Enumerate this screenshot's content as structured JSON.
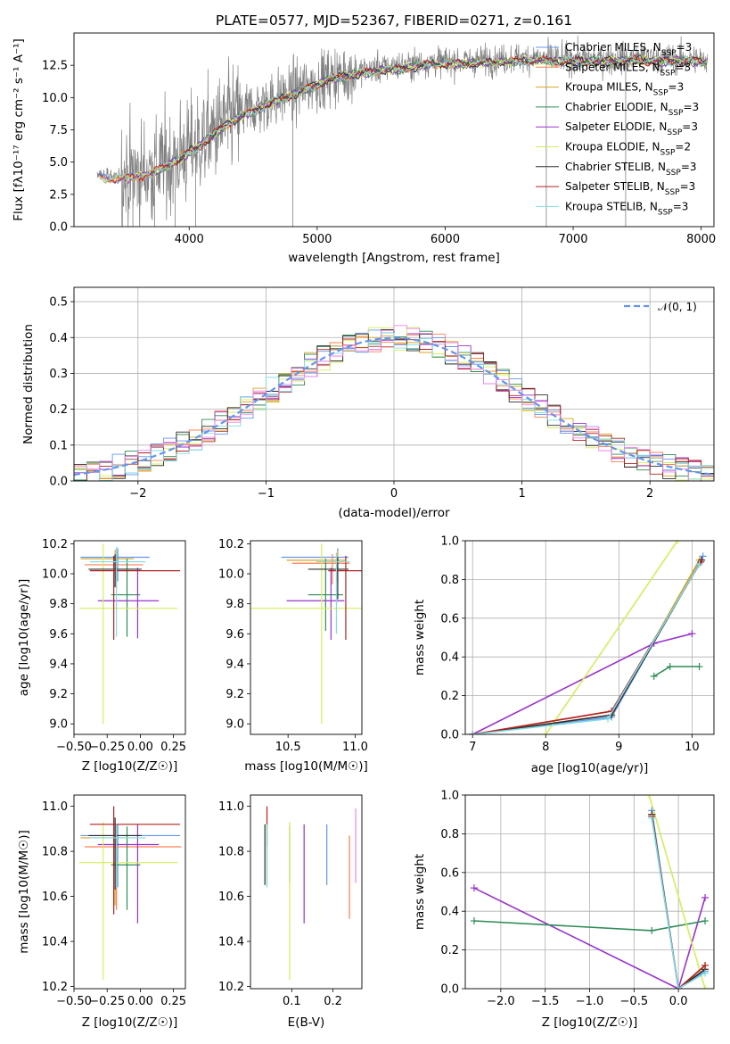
{
  "chart_data": [
    {
      "id": "spectrum",
      "type": "line",
      "title": "PLATE=0577, MJD=52367, FIBERID=0271, z=0.161",
      "xlabel": "wavelength [Angstrom, rest frame]",
      "ylabel": "Flux [fλ10⁻¹⁷ erg cm⁻² s⁻¹ A⁻¹]",
      "xlim": [
        3100,
        8100
      ],
      "ylim": [
        0,
        15
      ],
      "xticks": [
        4000,
        5000,
        6000,
        7000,
        8000
      ],
      "yticks": [
        0.0,
        2.5,
        5.0,
        7.5,
        10.0,
        12.5
      ],
      "grid": false,
      "legend_position": "upper-right",
      "data_color": "#808080",
      "data_envelope": {
        "x": [
          3300,
          3500,
          3700,
          3900,
          4100,
          4300,
          4500,
          4700,
          4900,
          5100,
          5300,
          5500,
          5700,
          5900,
          6100,
          6300,
          6500,
          6700,
          6900,
          7100,
          7300,
          7500,
          7700,
          7900,
          8050
        ],
        "y": [
          4.0,
          3.9,
          4.3,
          5.3,
          6.6,
          8.2,
          9.2,
          10.0,
          10.8,
          11.6,
          12.0,
          12.3,
          12.5,
          12.8,
          12.8,
          12.9,
          13.0,
          13.1,
          13.0,
          13.0,
          13.0,
          13.1,
          13.0,
          13.0,
          12.9
        ]
      },
      "series": [
        {
          "name": "Chabrier MILES, N_SSP=3",
          "color": "#6495ed"
        },
        {
          "name": "Salpeter MILES, N_SSP=3",
          "color": "#ff7f50"
        },
        {
          "name": "Kroupa MILES, N_SSP=3",
          "color": "#daa520"
        },
        {
          "name": "Chabrier ELODIE, N_SSP=3",
          "color": "#2e8b57"
        },
        {
          "name": "Salpeter ELODIE, N_SSP=3",
          "color": "#9932cc"
        },
        {
          "name": "Kroupa ELODIE, N_SSP=2",
          "color": "#d4ed5b"
        },
        {
          "name": "Chabrier STELIB, N_SSP=3",
          "color": "#2f2f2f"
        },
        {
          "name": "Salpeter STELIB, N_SSP=3",
          "color": "#b22222"
        },
        {
          "name": "Kroupa STELIB, N_SSP=3",
          "color": "#7fdbe6"
        }
      ]
    },
    {
      "id": "residuals",
      "type": "histogram",
      "xlabel": "(data-model)/error",
      "ylabel": "Normed distribution",
      "xlim": [
        -2.5,
        2.5
      ],
      "ylim": [
        0,
        0.54
      ],
      "xticks": [
        -2,
        -1,
        0,
        1,
        2
      ],
      "yticks": [
        0.0,
        0.1,
        0.2,
        0.3,
        0.4,
        0.5
      ],
      "grid": true,
      "legend_position": "upper-right",
      "reference_curve": {
        "name": "𝒩(0, 1)",
        "color": "#6495ed",
        "style": "dashed",
        "mean": 0,
        "sigma": 1
      },
      "bin_width": 0.1
    },
    {
      "id": "age_vs_Z",
      "type": "errorbar",
      "xlabel": "Z [log10(Z/Z☉)]",
      "ylabel": "age  [log10(age/yr)]",
      "xlim": [
        -0.5,
        0.34
      ],
      "ylim": [
        8.93,
        10.22
      ],
      "xticks": [
        -0.5,
        -0.25,
        0.0,
        0.25
      ],
      "xtick_labels": [
        "−0.50",
        "−0.25",
        "0.00",
        "0.25"
      ],
      "yticks": [
        9.0,
        9.2,
        9.4,
        9.6,
        9.8,
        10.0,
        10.2
      ],
      "points": [
        {
          "color": "#6495ed",
          "x": -0.17,
          "y": 10.11,
          "xerr": [
            0.28,
            0.24
          ],
          "yerr": [
            0.16,
            0.06
          ]
        },
        {
          "color": "#ff7f50",
          "x": -0.18,
          "y": 10.06,
          "xerr": [
            0.24,
            0.2
          ],
          "yerr": [
            0.16,
            0.08
          ]
        },
        {
          "color": "#daa520",
          "x": -0.19,
          "y": 10.1,
          "xerr": [
            0.26,
            0.14
          ],
          "yerr": [
            0.14,
            0.06
          ]
        },
        {
          "color": "#2e8b57",
          "x": -0.1,
          "y": 9.86,
          "xerr": [
            0.12,
            0.1
          ],
          "yerr": [
            0.28,
            0.24
          ]
        },
        {
          "color": "#9932cc",
          "x": -0.02,
          "y": 9.82,
          "xerr": [
            0.3,
            0.16
          ],
          "yerr": [
            0.25,
            0.22
          ]
        },
        {
          "color": "#d4ed5b",
          "x": -0.28,
          "y": 9.77,
          "xerr": [
            0.18,
            0.56
          ],
          "yerr": [
            0.77,
            0.43
          ]
        },
        {
          "color": "#2f2f2f",
          "x": -0.19,
          "y": 10.03,
          "xerr": [
            0.2,
            0.2
          ],
          "yerr": [
            0.12,
            0.1
          ]
        },
        {
          "color": "#b22222",
          "x": -0.2,
          "y": 10.02,
          "xerr": [
            0.18,
            0.5
          ],
          "yerr": [
            0.46,
            0.1
          ]
        },
        {
          "color": "#7fdbe6",
          "x": -0.18,
          "y": 10.08,
          "xerr": [
            0.2,
            0.22
          ],
          "yerr": [
            0.5,
            0.1
          ]
        }
      ]
    },
    {
      "id": "age_vs_mass",
      "type": "errorbar",
      "xlabel": "mass [log10(M/M☉)]",
      "xlim": [
        10.22,
        11.05
      ],
      "ylim": [
        8.93,
        10.22
      ],
      "xticks": [
        10.5,
        11.0
      ],
      "yticks": [
        9.0,
        9.2,
        9.4,
        9.6,
        9.8,
        10.0,
        10.2
      ],
      "points": [
        {
          "color": "#6495ed",
          "x": 10.87,
          "y": 10.11,
          "xerr": [
            0.42,
            0.08
          ],
          "yerr": [
            0.16,
            0.06
          ]
        },
        {
          "color": "#ff7f50",
          "x": 10.83,
          "y": 10.07,
          "xerr": [
            0.3,
            0.13
          ],
          "yerr": [
            0.14,
            0.06
          ]
        },
        {
          "color": "#daa520",
          "x": 10.87,
          "y": 10.09,
          "xerr": [
            0.38,
            0.06
          ],
          "yerr": [
            0.14,
            0.06
          ]
        },
        {
          "color": "#2e8b57",
          "x": 10.78,
          "y": 9.86,
          "xerr": [
            0.13,
            0.13
          ],
          "yerr": [
            0.24,
            0.24
          ]
        },
        {
          "color": "#9932cc",
          "x": 10.82,
          "y": 9.82,
          "xerr": [
            0.33,
            0.1
          ],
          "yerr": [
            0.26,
            0.22
          ]
        },
        {
          "color": "#d4ed5b",
          "x": 10.75,
          "y": 9.77,
          "xerr": [
            0.53,
            0.3
          ],
          "yerr": [
            0.77,
            0.43
          ]
        },
        {
          "color": "#2f2f2f",
          "x": 10.87,
          "y": 10.03,
          "xerr": [
            0.22,
            0.08
          ],
          "yerr": [
            0.2,
            0.08
          ]
        },
        {
          "color": "#b22222",
          "x": 10.93,
          "y": 10.02,
          "xerr": [
            0.13,
            0.2
          ],
          "yerr": [
            0.46,
            0.1
          ]
        },
        {
          "color": "#7fdbe6",
          "x": 10.86,
          "y": 10.08,
          "xerr": [
            0.15,
            0.1
          ],
          "yerr": [
            0.48,
            0.06
          ]
        }
      ]
    },
    {
      "id": "weight_vs_age",
      "type": "line",
      "xlabel": "age  [log10(age/yr)]",
      "ylabel": "mass weight",
      "xlim": [
        6.9,
        10.3
      ],
      "ylim": [
        0,
        1.0
      ],
      "xticks": [
        7,
        8,
        9,
        10
      ],
      "yticks": [
        0.0,
        0.2,
        0.4,
        0.6,
        0.8,
        1.0
      ],
      "grid": true,
      "series": [
        {
          "color": "#6495ed",
          "x": [
            7.0,
            8.9,
            10.15
          ],
          "y": [
            0.0,
            0.09,
            0.92
          ]
        },
        {
          "color": "#ff7f50",
          "x": [
            7.0,
            8.9,
            10.13
          ],
          "y": [
            0.0,
            0.12,
            0.9
          ]
        },
        {
          "color": "#daa520",
          "x": [
            7.0,
            8.9,
            10.1
          ],
          "y": [
            0.0,
            0.1,
            0.9
          ]
        },
        {
          "color": "#2e8b57",
          "x": [
            9.48,
            9.7,
            10.1
          ],
          "y": [
            0.3,
            0.35,
            0.35
          ]
        },
        {
          "color": "#9932cc",
          "x": [
            7.0,
            9.48,
            10.0
          ],
          "y": [
            0.0,
            0.47,
            0.52
          ]
        },
        {
          "color": "#d4ed5b",
          "x": [
            8.0,
            9.8
          ],
          "y": [
            0.0,
            1.0
          ]
        },
        {
          "color": "#2f2f2f",
          "x": [
            7.0,
            8.9,
            10.13
          ],
          "y": [
            0.0,
            0.1,
            0.9
          ]
        },
        {
          "color": "#b22222",
          "x": [
            7.0,
            8.9,
            10.12
          ],
          "y": [
            0.0,
            0.12,
            0.89
          ]
        },
        {
          "color": "#7fdbe6",
          "x": [
            7.0,
            8.85,
            10.1
          ],
          "y": [
            0.0,
            0.08,
            0.88
          ]
        }
      ]
    },
    {
      "id": "mass_vs_Z",
      "type": "errorbar",
      "xlabel": "Z [log10(Z/Z☉)]",
      "ylabel": "mass [log10(M/M☉)]",
      "xlim": [
        -0.5,
        0.34
      ],
      "ylim": [
        10.19,
        11.05
      ],
      "xticks": [
        -0.5,
        -0.25,
        0.0,
        0.25
      ],
      "xtick_labels": [
        "−0.50",
        "−0.25",
        "0.00",
        "0.25"
      ],
      "yticks": [
        10.2,
        10.4,
        10.6,
        10.8,
        11.0
      ],
      "points": [
        {
          "color": "#6495ed",
          "x": -0.17,
          "y": 10.87,
          "xerr": [
            0.28,
            0.47
          ],
          "yerr": [
            0.23,
            0.05
          ]
        },
        {
          "color": "#ff7f50",
          "x": -0.18,
          "y": 10.82,
          "xerr": [
            0.24,
            0.49
          ],
          "yerr": [
            0.28,
            0.1
          ]
        },
        {
          "color": "#daa520",
          "x": -0.19,
          "y": 10.86,
          "xerr": [
            0.26,
            0.14
          ],
          "yerr": [
            0.3,
            0.06
          ]
        },
        {
          "color": "#2e8b57",
          "x": -0.1,
          "y": 10.74,
          "xerr": [
            0.12,
            0.1
          ],
          "yerr": [
            0.2,
            0.17
          ]
        },
        {
          "color": "#9932cc",
          "x": -0.02,
          "y": 10.83,
          "xerr": [
            0.3,
            0.16
          ],
          "yerr": [
            0.35,
            0.09
          ]
        },
        {
          "color": "#d4ed5b",
          "x": -0.28,
          "y": 10.75,
          "xerr": [
            0.18,
            0.56
          ],
          "yerr": [
            0.52,
            0.18
          ]
        },
        {
          "color": "#2f2f2f",
          "x": -0.19,
          "y": 10.87,
          "xerr": [
            0.2,
            0.2
          ],
          "yerr": [
            0.24,
            0.08
          ]
        },
        {
          "color": "#b22222",
          "x": -0.2,
          "y": 10.92,
          "xerr": [
            0.18,
            0.5
          ],
          "yerr": [
            0.4,
            0.08
          ]
        },
        {
          "color": "#7fdbe6",
          "x": -0.18,
          "y": 10.86,
          "xerr": [
            0.2,
            0.22
          ],
          "yerr": [
            0.22,
            0.06
          ]
        }
      ]
    },
    {
      "id": "mass_vs_ebv",
      "type": "errorbar",
      "xlabel": "E(B-V)",
      "xlim": [
        0.0,
        0.27
      ],
      "ylim": [
        10.19,
        11.05
      ],
      "xticks": [
        0.1,
        0.2
      ],
      "yticks": [
        10.2,
        10.4,
        10.6,
        10.8,
        11.0
      ],
      "points": [
        {
          "color": "#6495ed",
          "x": 0.185,
          "y": 10.87,
          "yerr": [
            0.22,
            0.05
          ]
        },
        {
          "color": "#ff7f50",
          "x": 0.24,
          "y": 10.82,
          "yerr": [
            0.32,
            0.05
          ]
        },
        {
          "color": "#daa520",
          "x": 0.04,
          "y": 10.86,
          "yerr": [
            0.2,
            0.06
          ]
        },
        {
          "color": "#2e8b57",
          "x": 0.095,
          "y": 10.74,
          "yerr": [
            0.08,
            0.17
          ]
        },
        {
          "color": "#9932cc",
          "x": 0.13,
          "y": 10.83,
          "yerr": [
            0.35,
            0.09
          ]
        },
        {
          "color": "#d4ed5b",
          "x": 0.095,
          "y": 10.75,
          "yerr": [
            0.52,
            0.18
          ]
        },
        {
          "color": "#2f2f2f",
          "x": 0.035,
          "y": 10.87,
          "yerr": [
            0.22,
            0.05
          ]
        },
        {
          "color": "#b22222",
          "x": 0.04,
          "y": 10.92,
          "yerr": [
            0.1,
            0.08
          ]
        },
        {
          "color": "#7fdbe6",
          "x": 0.04,
          "y": 10.86,
          "yerr": [
            0.22,
            0.06
          ]
        },
        {
          "color": "#ee82ee",
          "x": 0.255,
          "y": 10.86,
          "yerr": [
            0.2,
            0.13
          ]
        }
      ]
    },
    {
      "id": "weight_vs_Z",
      "type": "line",
      "xlabel": "Z [log10(Z/Z☉)]",
      "ylabel": "mass weight",
      "xlim": [
        -2.4,
        0.4
      ],
      "ylim": [
        0,
        1.0
      ],
      "xticks": [
        -2.0,
        -1.5,
        -1.0,
        -0.5,
        0.0
      ],
      "xtick_labels": [
        "−2.0",
        "−1.5",
        "−1.0",
        "−0.5",
        "0.0"
      ],
      "yticks": [
        0.0,
        0.2,
        0.4,
        0.6,
        0.8,
        1.0
      ],
      "grid": true,
      "series": [
        {
          "color": "#9932cc",
          "x": [
            -2.3,
            0.0,
            0.3
          ],
          "y": [
            0.52,
            0.0,
            0.47
          ]
        },
        {
          "color": "#2e8b57",
          "x": [
            -2.3,
            -0.3,
            0.3
          ],
          "y": [
            0.35,
            0.3,
            0.35
          ]
        },
        {
          "color": "#d4ed5b",
          "x": [
            -0.33,
            0.3
          ],
          "y": [
            1.0,
            0.0
          ]
        },
        {
          "color": "#6495ed",
          "x": [
            -0.3,
            0.0,
            0.3
          ],
          "y": [
            0.92,
            0.0,
            0.09
          ]
        },
        {
          "color": "#ff7f50",
          "x": [
            -0.3,
            0.0,
            0.3
          ],
          "y": [
            0.9,
            0.0,
            0.12
          ]
        },
        {
          "color": "#daa520",
          "x": [
            -0.3,
            0.0,
            0.3
          ],
          "y": [
            0.9,
            0.0,
            0.1
          ]
        },
        {
          "color": "#2f2f2f",
          "x": [
            -0.3,
            0.0,
            0.3
          ],
          "y": [
            0.9,
            0.0,
            0.1
          ]
        },
        {
          "color": "#b22222",
          "x": [
            -0.3,
            0.0,
            0.3
          ],
          "y": [
            0.89,
            0.0,
            0.12
          ]
        },
        {
          "color": "#7fdbe6",
          "x": [
            -0.3,
            0.0,
            0.3
          ],
          "y": [
            0.88,
            0.0,
            0.08
          ]
        }
      ]
    }
  ]
}
